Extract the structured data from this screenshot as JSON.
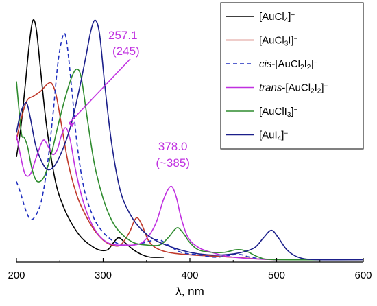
{
  "chart_data": {
    "type": "line",
    "xlabel": "λ, nm",
    "xlim": [
      200,
      600
    ],
    "ylim": [
      0,
      1.0
    ],
    "x_ticks": [
      200,
      300,
      400,
      500,
      600
    ],
    "y_ticks_shown": false,
    "legend_position": "top-right",
    "series": [
      {
        "name": "[AuCl4]⁻",
        "name_parts": [
          [
            "[AuCl",
            ""
          ],
          [
            "4",
            "sub"
          ],
          [
            "]",
            ""
          ],
          [
            "−",
            "sup"
          ]
        ],
        "color": "#000000",
        "dash": "solid",
        "peaks": [
          [
            219,
            0.99
          ],
          [
            318,
            0.1
          ]
        ],
        "x_range": [
          200,
          370
        ],
        "points": [
          [
            200,
            0.43
          ],
          [
            205,
            0.55
          ],
          [
            210,
            0.72
          ],
          [
            215,
            0.9
          ],
          [
            219,
            0.99
          ],
          [
            223,
            0.95
          ],
          [
            228,
            0.78
          ],
          [
            235,
            0.55
          ],
          [
            245,
            0.33
          ],
          [
            255,
            0.22
          ],
          [
            265,
            0.15
          ],
          [
            275,
            0.1
          ],
          [
            285,
            0.07
          ],
          [
            295,
            0.05
          ],
          [
            305,
            0.05
          ],
          [
            312,
            0.08
          ],
          [
            318,
            0.1
          ],
          [
            325,
            0.08
          ],
          [
            335,
            0.05
          ],
          [
            345,
            0.03
          ],
          [
            355,
            0.02
          ],
          [
            370,
            0.02
          ]
        ]
      },
      {
        "name": "[AuCl3I]⁻",
        "name_parts": [
          [
            "[AuCl",
            ""
          ],
          [
            "3",
            "sub"
          ],
          [
            "I]",
            ""
          ],
          [
            "−",
            "sup"
          ]
        ],
        "color": "#c0392b",
        "dash": "solid",
        "peaks": [
          [
            241,
            0.73
          ],
          [
            340,
            0.18
          ]
        ],
        "x_range": [
          200,
          600
        ],
        "points": [
          [
            200,
            0.5
          ],
          [
            205,
            0.58
          ],
          [
            212,
            0.66
          ],
          [
            220,
            0.68
          ],
          [
            228,
            0.7
          ],
          [
            236,
            0.73
          ],
          [
            241,
            0.73
          ],
          [
            246,
            0.68
          ],
          [
            252,
            0.56
          ],
          [
            260,
            0.4
          ],
          [
            270,
            0.27
          ],
          [
            280,
            0.19
          ],
          [
            290,
            0.13
          ],
          [
            300,
            0.09
          ],
          [
            310,
            0.07
          ],
          [
            320,
            0.07
          ],
          [
            330,
            0.12
          ],
          [
            336,
            0.17
          ],
          [
            340,
            0.18
          ],
          [
            345,
            0.15
          ],
          [
            352,
            0.09
          ],
          [
            360,
            0.06
          ],
          [
            375,
            0.04
          ],
          [
            400,
            0.03
          ],
          [
            450,
            0.02
          ],
          [
            500,
            0.01
          ],
          [
            600,
            0.01
          ]
        ]
      },
      {
        "name": "cis-[AuCl2I2]⁻",
        "name_parts": [
          [
            "cis",
            "it"
          ],
          [
            "-[AuCl",
            ""
          ],
          [
            "2",
            "sub"
          ],
          [
            "I",
            ""
          ],
          [
            "2",
            "sub"
          ],
          [
            "]",
            ""
          ],
          [
            "−",
            "sup"
          ]
        ],
        "color": "#1f2fbf",
        "dash": "dashed",
        "peaks": [
          [
            254,
            0.93
          ],
          [
            365,
            0.09
          ],
          [
            460,
            0.03
          ]
        ],
        "x_range": [
          200,
          600
        ],
        "points": [
          [
            200,
            0.33
          ],
          [
            205,
            0.28
          ],
          [
            210,
            0.22
          ],
          [
            215,
            0.18
          ],
          [
            220,
            0.18
          ],
          [
            228,
            0.24
          ],
          [
            235,
            0.38
          ],
          [
            242,
            0.6
          ],
          [
            248,
            0.82
          ],
          [
            254,
            0.93
          ],
          [
            258,
            0.9
          ],
          [
            264,
            0.7
          ],
          [
            270,
            0.48
          ],
          [
            278,
            0.3
          ],
          [
            288,
            0.19
          ],
          [
            298,
            0.13
          ],
          [
            310,
            0.09
          ],
          [
            322,
            0.07
          ],
          [
            335,
            0.07
          ],
          [
            348,
            0.08
          ],
          [
            358,
            0.09
          ],
          [
            366,
            0.09
          ],
          [
            375,
            0.07
          ],
          [
            390,
            0.04
          ],
          [
            410,
            0.03
          ],
          [
            430,
            0.02
          ],
          [
            450,
            0.03
          ],
          [
            460,
            0.03
          ],
          [
            470,
            0.02
          ],
          [
            500,
            0.01
          ],
          [
            600,
            0.01
          ]
        ]
      },
      {
        "name": "trans-[AuCl2I2]⁻",
        "name_parts": [
          [
            "trans",
            "it"
          ],
          [
            "-[AuCl",
            ""
          ],
          [
            "2",
            "sub"
          ],
          [
            "I",
            ""
          ],
          [
            "2",
            "sub"
          ],
          [
            "]",
            ""
          ],
          [
            "−",
            "sup"
          ]
        ],
        "color": "#c030e0",
        "dash": "solid",
        "peaks": [
          [
            232,
            0.5
          ],
          [
            257.1,
            0.55
          ],
          [
            378.0,
            0.31
          ]
        ],
        "x_range": [
          200,
          600
        ],
        "points": [
          [
            200,
            0.52
          ],
          [
            205,
            0.43
          ],
          [
            210,
            0.36
          ],
          [
            216,
            0.36
          ],
          [
            222,
            0.42
          ],
          [
            228,
            0.48
          ],
          [
            232,
            0.5
          ],
          [
            237,
            0.47
          ],
          [
            242,
            0.44
          ],
          [
            247,
            0.46
          ],
          [
            252,
            0.52
          ],
          [
            257,
            0.55
          ],
          [
            262,
            0.5
          ],
          [
            268,
            0.38
          ],
          [
            276,
            0.26
          ],
          [
            285,
            0.17
          ],
          [
            295,
            0.11
          ],
          [
            305,
            0.08
          ],
          [
            315,
            0.07
          ],
          [
            325,
            0.07
          ],
          [
            335,
            0.07
          ],
          [
            345,
            0.08
          ],
          [
            355,
            0.12
          ],
          [
            362,
            0.17
          ],
          [
            370,
            0.26
          ],
          [
            378,
            0.31
          ],
          [
            384,
            0.27
          ],
          [
            390,
            0.18
          ],
          [
            398,
            0.1
          ],
          [
            410,
            0.06
          ],
          [
            425,
            0.04
          ],
          [
            450,
            0.02
          ],
          [
            500,
            0.01
          ],
          [
            600,
            0.01
          ]
        ]
      },
      {
        "name": "[AuClI3]⁻",
        "name_parts": [
          [
            "[AuClI",
            ""
          ],
          [
            "3",
            "sub"
          ],
          [
            "]",
            ""
          ],
          [
            "−",
            "sup"
          ]
        ],
        "color": "#2e8b2e",
        "dash": "solid",
        "peaks": [
          [
            209,
            0.51
          ],
          [
            270,
            0.79
          ],
          [
            385,
            0.14
          ],
          [
            460,
            0.05
          ]
        ],
        "x_range": [
          200,
          600
        ],
        "points": [
          [
            200,
            0.74
          ],
          [
            203,
            0.62
          ],
          [
            206,
            0.52
          ],
          [
            209,
            0.51
          ],
          [
            213,
            0.47
          ],
          [
            218,
            0.38
          ],
          [
            224,
            0.33
          ],
          [
            232,
            0.35
          ],
          [
            240,
            0.44
          ],
          [
            248,
            0.56
          ],
          [
            256,
            0.67
          ],
          [
            264,
            0.76
          ],
          [
            270,
            0.79
          ],
          [
            275,
            0.75
          ],
          [
            282,
            0.58
          ],
          [
            290,
            0.4
          ],
          [
            300,
            0.26
          ],
          [
            310,
            0.17
          ],
          [
            320,
            0.12
          ],
          [
            335,
            0.08
          ],
          [
            350,
            0.07
          ],
          [
            365,
            0.07
          ],
          [
            375,
            0.1
          ],
          [
            385,
            0.14
          ],
          [
            392,
            0.12
          ],
          [
            400,
            0.08
          ],
          [
            410,
            0.05
          ],
          [
            425,
            0.04
          ],
          [
            440,
            0.04
          ],
          [
            452,
            0.05
          ],
          [
            460,
            0.05
          ],
          [
            468,
            0.04
          ],
          [
            480,
            0.02
          ],
          [
            500,
            0.01
          ],
          [
            600,
            0.01
          ]
        ]
      },
      {
        "name": "[AuI4]⁻",
        "name_parts": [
          [
            "[AuI",
            ""
          ],
          [
            "4",
            "sub"
          ],
          [
            "]",
            ""
          ],
          [
            "−",
            "sup"
          ]
        ],
        "color": "#1b1f8a",
        "dash": "solid",
        "peaks": [
          [
            212,
            0.65
          ],
          [
            291,
            0.99
          ],
          [
            494,
            0.13
          ]
        ],
        "x_range": [
          200,
          600
        ],
        "points": [
          [
            200,
            0.53
          ],
          [
            204,
            0.6
          ],
          [
            208,
            0.64
          ],
          [
            212,
            0.65
          ],
          [
            216,
            0.59
          ],
          [
            222,
            0.48
          ],
          [
            228,
            0.42
          ],
          [
            235,
            0.38
          ],
          [
            243,
            0.39
          ],
          [
            252,
            0.45
          ],
          [
            262,
            0.55
          ],
          [
            272,
            0.7
          ],
          [
            280,
            0.84
          ],
          [
            286,
            0.95
          ],
          [
            291,
            0.99
          ],
          [
            296,
            0.93
          ],
          [
            302,
            0.72
          ],
          [
            310,
            0.48
          ],
          [
            320,
            0.29
          ],
          [
            332,
            0.19
          ],
          [
            345,
            0.13
          ],
          [
            360,
            0.09
          ],
          [
            380,
            0.06
          ],
          [
            400,
            0.04
          ],
          [
            420,
            0.03
          ],
          [
            440,
            0.03
          ],
          [
            460,
            0.04
          ],
          [
            475,
            0.06
          ],
          [
            485,
            0.1
          ],
          [
            494,
            0.13
          ],
          [
            502,
            0.1
          ],
          [
            512,
            0.05
          ],
          [
            525,
            0.02
          ],
          [
            545,
            0.01
          ],
          [
            600,
            0.01
          ]
        ]
      }
    ],
    "annotations": [
      {
        "line1": "257.1",
        "line2": "(245)",
        "color": "#c030e0",
        "target_x": 257.1,
        "target_y": 0.55
      },
      {
        "line1": "378.0",
        "line2": "(~385)",
        "color": "#c030e0",
        "target_x": 378.0,
        "target_y": 0.31
      }
    ]
  }
}
